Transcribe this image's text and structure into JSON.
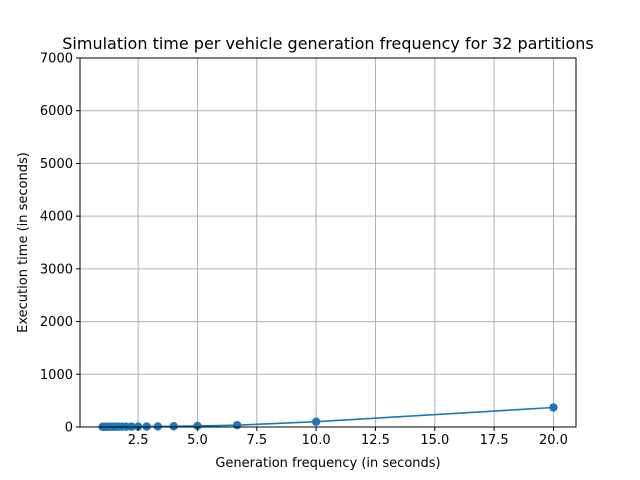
{
  "chart_data": {
    "type": "line",
    "title": "Simulation time per vehicle generation frequency for 32 partitions",
    "xlabel": "Generation frequency (in seconds)",
    "ylabel": "Execution time (in seconds)",
    "xlim": [
      0.05,
      20.95
    ],
    "ylim": [
      0,
      7000
    ],
    "xticks": [
      "2.5",
      "5.0",
      "7.5",
      "10.0",
      "12.5",
      "15.0",
      "17.5",
      "20.0"
    ],
    "yticks": [
      "0",
      "1000",
      "2000",
      "3000",
      "4000",
      "5000",
      "6000",
      "7000"
    ],
    "grid": true,
    "series": [
      {
        "color": "#1f77b4",
        "marker": "circle",
        "x": [
          1.0,
          1.05,
          1.11,
          1.18,
          1.25,
          1.33,
          1.43,
          1.54,
          1.67,
          1.82,
          2.0,
          2.22,
          2.5,
          2.86,
          3.33,
          4.0,
          5.0,
          6.67,
          10.0,
          20.0
        ],
        "y": [
          4,
          4,
          4,
          4,
          5,
          5,
          5,
          5,
          6,
          6,
          6,
          7,
          8,
          9,
          11,
          14,
          20,
          35,
          100,
          370
        ]
      }
    ]
  }
}
